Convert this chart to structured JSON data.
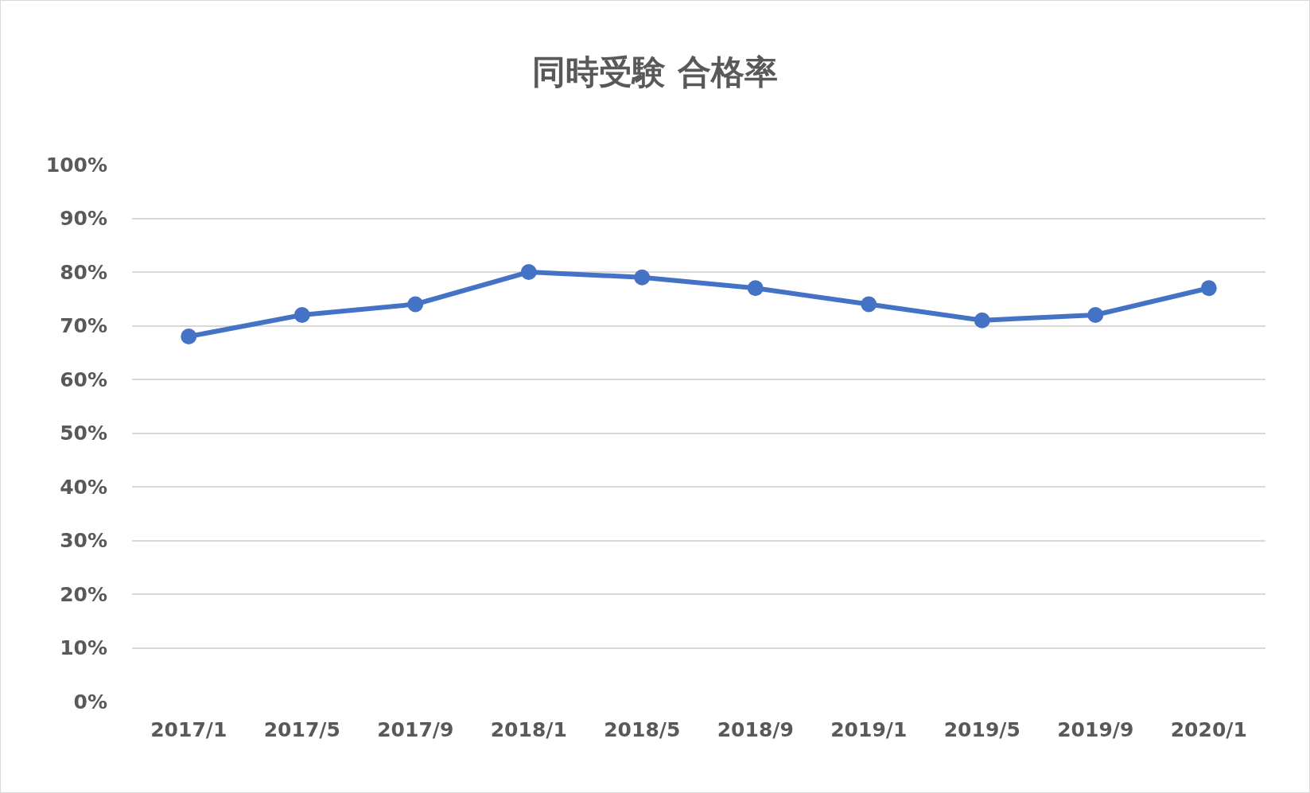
{
  "chart_data": {
    "type": "line",
    "title": "同時受験 合格率",
    "categories": [
      "2017/1",
      "2017/5",
      "2017/9",
      "2018/1",
      "2018/5",
      "2018/9",
      "2019/1",
      "2019/5",
      "2019/9",
      "2020/1"
    ],
    "series": [
      {
        "color": "#4472c4",
        "values": [
          68,
          72,
          74,
          80,
          79,
          77,
          74,
          71,
          72,
          77
        ]
      }
    ],
    "ylim": [
      0,
      100
    ],
    "yticks": [
      {
        "value": 0,
        "label": "0%"
      },
      {
        "value": 10,
        "label": "10%"
      },
      {
        "value": 20,
        "label": "20%"
      },
      {
        "value": 30,
        "label": "30%"
      },
      {
        "value": 40,
        "label": "40%"
      },
      {
        "value": 50,
        "label": "50%"
      },
      {
        "value": 60,
        "label": "60%"
      },
      {
        "value": 70,
        "label": "70%"
      },
      {
        "value": 80,
        "label": "80%"
      },
      {
        "value": 90,
        "label": "90%"
      },
      {
        "value": 100,
        "label": "100%"
      }
    ],
    "grid": "y",
    "marker": "circle"
  }
}
